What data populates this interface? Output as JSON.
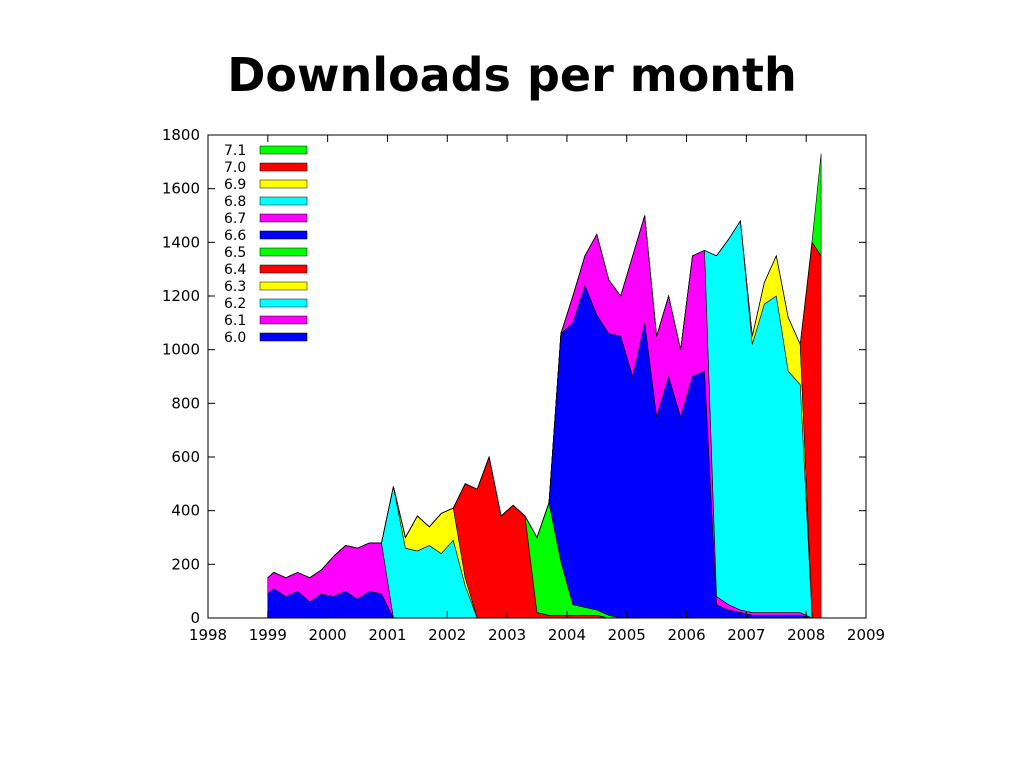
{
  "page": {
    "title": "Downloads per month"
  },
  "chart_data": {
    "type": "area",
    "stacked": true,
    "title": "",
    "xlabel": "",
    "ylabel": "",
    "xlim": [
      1998,
      2009
    ],
    "ylim": [
      0,
      1800
    ],
    "x_ticks": [
      "1998",
      "1999",
      "2000",
      "2001",
      "2002",
      "2003",
      "2004",
      "2005",
      "2006",
      "2007",
      "2008",
      "2009"
    ],
    "y_ticks": [
      "0",
      "200",
      "400",
      "600",
      "800",
      "1000",
      "1200",
      "1400",
      "1600",
      "1800"
    ],
    "grid": false,
    "legend_position": "top-left",
    "x": [
      1999,
      1999.1,
      1999.3,
      1999.5,
      1999.7,
      1999.9,
      2000.1,
      2000.3,
      2000.5,
      2000.7,
      2000.9,
      2001.1,
      2001.3,
      2001.5,
      2001.7,
      2001.9,
      2002.1,
      2002.3,
      2002.5,
      2002.7,
      2002.9,
      2003.1,
      2003.3,
      2003.5,
      2003.7,
      2003.9,
      2004.1,
      2004.3,
      2004.5,
      2004.7,
      2004.9,
      2005.1,
      2005.3,
      2005.5,
      2005.7,
      2005.9,
      2006.1,
      2006.3,
      2006.5,
      2006.7,
      2006.9,
      2007.1,
      2007.3,
      2007.5,
      2007.7,
      2007.9,
      2008.1,
      2008.25
    ],
    "series": [
      {
        "name": "6.0",
        "color": "#0000ff",
        "values": [
          90,
          110,
          80,
          100,
          60,
          90,
          80,
          100,
          70,
          100,
          90,
          0,
          0,
          0,
          0,
          0,
          0,
          0,
          0,
          0,
          0,
          0,
          0,
          0,
          0,
          0,
          0,
          0,
          0,
          0,
          0,
          0,
          0,
          0,
          0,
          0,
          0,
          0,
          0,
          0,
          0,
          0,
          0,
          0,
          0,
          0,
          0,
          0
        ]
      },
      {
        "name": "6.1",
        "color": "#ff00ff",
        "values": [
          60,
          60,
          70,
          70,
          90,
          90,
          150,
          170,
          190,
          180,
          190,
          0,
          0,
          0,
          0,
          0,
          0,
          0,
          0,
          0,
          0,
          0,
          0,
          0,
          0,
          0,
          0,
          0,
          0,
          0,
          0,
          0,
          0,
          0,
          0,
          0,
          0,
          0,
          0,
          0,
          0,
          0,
          0,
          0,
          0,
          0,
          0,
          0
        ]
      },
      {
        "name": "6.2",
        "color": "#00ffff",
        "values": [
          0,
          0,
          0,
          0,
          0,
          0,
          0,
          0,
          0,
          0,
          0,
          490,
          260,
          250,
          270,
          240,
          290,
          120,
          0,
          0,
          0,
          0,
          0,
          0,
          0,
          0,
          0,
          0,
          0,
          0,
          0,
          0,
          0,
          0,
          0,
          0,
          0,
          0,
          0,
          0,
          0,
          0,
          0,
          0,
          0,
          0,
          0,
          0
        ]
      },
      {
        "name": "6.3",
        "color": "#ffff00",
        "values": [
          0,
          0,
          0,
          0,
          0,
          0,
          0,
          0,
          0,
          0,
          0,
          0,
          40,
          130,
          70,
          150,
          120,
          30,
          0,
          0,
          0,
          0,
          0,
          0,
          0,
          0,
          0,
          0,
          0,
          0,
          0,
          0,
          0,
          0,
          0,
          0,
          0,
          0,
          0,
          0,
          0,
          0,
          0,
          0,
          0,
          0,
          0,
          0
        ]
      },
      {
        "name": "6.4",
        "color": "#ff0000",
        "values": [
          0,
          0,
          0,
          0,
          0,
          0,
          0,
          0,
          0,
          0,
          0,
          0,
          0,
          0,
          0,
          0,
          0,
          350,
          480,
          600,
          380,
          420,
          380,
          20,
          10,
          10,
          10,
          10,
          10,
          0,
          0,
          0,
          0,
          0,
          0,
          0,
          0,
          0,
          0,
          0,
          0,
          0,
          0,
          0,
          0,
          0,
          0,
          0
        ]
      },
      {
        "name": "6.5",
        "color": "#00ff00",
        "values": [
          0,
          0,
          0,
          0,
          0,
          0,
          0,
          0,
          0,
          0,
          0,
          0,
          0,
          0,
          0,
          0,
          0,
          0,
          0,
          0,
          0,
          0,
          0,
          280,
          420,
          200,
          40,
          30,
          20,
          10,
          0,
          0,
          0,
          0,
          0,
          0,
          0,
          0,
          0,
          0,
          0,
          0,
          0,
          0,
          0,
          0,
          0,
          0
        ]
      },
      {
        "name": "6.6",
        "color": "#0000ff",
        "values": [
          0,
          0,
          0,
          0,
          0,
          0,
          0,
          0,
          0,
          0,
          0,
          0,
          0,
          0,
          0,
          0,
          0,
          0,
          0,
          0,
          0,
          0,
          0,
          0,
          0,
          850,
          1050,
          1200,
          1100,
          1050,
          1050,
          900,
          1100,
          750,
          900,
          750,
          900,
          920,
          50,
          30,
          20,
          10,
          10,
          10,
          10,
          10,
          0,
          0
        ]
      },
      {
        "name": "6.7",
        "color": "#ff00ff",
        "values": [
          0,
          0,
          0,
          0,
          0,
          0,
          0,
          0,
          0,
          0,
          0,
          0,
          0,
          0,
          0,
          0,
          0,
          0,
          0,
          0,
          0,
          0,
          0,
          0,
          0,
          0,
          100,
          110,
          300,
          200,
          150,
          450,
          400,
          300,
          300,
          250,
          450,
          450,
          30,
          20,
          10,
          10,
          10,
          10,
          10,
          10,
          0,
          0
        ]
      },
      {
        "name": "6.8",
        "color": "#00ffff",
        "values": [
          0,
          0,
          0,
          0,
          0,
          0,
          0,
          0,
          0,
          0,
          0,
          0,
          0,
          0,
          0,
          0,
          0,
          0,
          0,
          0,
          0,
          0,
          0,
          0,
          0,
          0,
          0,
          0,
          0,
          0,
          0,
          0,
          0,
          0,
          0,
          0,
          0,
          0,
          1270,
          1360,
          1450,
          1000,
          1150,
          1180,
          900,
          850,
          0,
          0
        ]
      },
      {
        "name": "6.9",
        "color": "#ffff00",
        "values": [
          0,
          0,
          0,
          0,
          0,
          0,
          0,
          0,
          0,
          0,
          0,
          0,
          0,
          0,
          0,
          0,
          0,
          0,
          0,
          0,
          0,
          0,
          0,
          0,
          0,
          0,
          0,
          0,
          0,
          0,
          0,
          0,
          0,
          0,
          0,
          0,
          0,
          0,
          0,
          0,
          0,
          30,
          80,
          150,
          200,
          150,
          0,
          0
        ]
      },
      {
        "name": "7.0",
        "color": "#ff0000",
        "values": [
          0,
          0,
          0,
          0,
          0,
          0,
          0,
          0,
          0,
          0,
          0,
          0,
          0,
          0,
          0,
          0,
          0,
          0,
          0,
          0,
          0,
          0,
          0,
          0,
          0,
          0,
          0,
          0,
          0,
          0,
          0,
          0,
          0,
          0,
          0,
          0,
          0,
          0,
          0,
          0,
          0,
          0,
          0,
          0,
          0,
          0,
          1400,
          1350
        ]
      },
      {
        "name": "7.1",
        "color": "#00ff00",
        "values": [
          0,
          0,
          0,
          0,
          0,
          0,
          0,
          0,
          0,
          0,
          0,
          0,
          0,
          0,
          0,
          0,
          0,
          0,
          0,
          0,
          0,
          0,
          0,
          0,
          0,
          0,
          0,
          0,
          0,
          0,
          0,
          0,
          0,
          0,
          0,
          0,
          0,
          0,
          0,
          0,
          0,
          0,
          0,
          0,
          0,
          0,
          10,
          380
        ]
      }
    ],
    "legend_order": [
      "7.1",
      "7.0",
      "6.9",
      "6.8",
      "6.7",
      "6.6",
      "6.5",
      "6.4",
      "6.3",
      "6.2",
      "6.1",
      "6.0"
    ]
  }
}
